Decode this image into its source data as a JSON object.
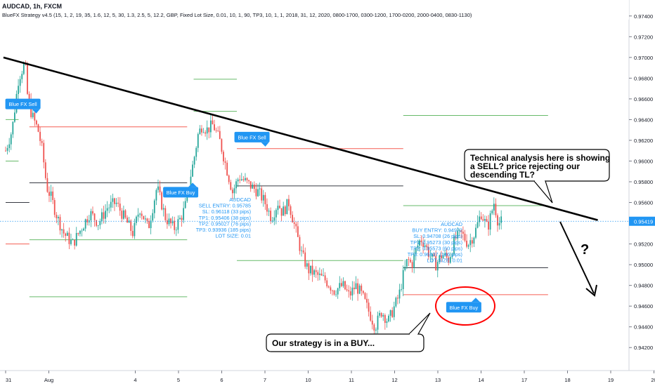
{
  "header": {
    "title": "AUDCAD, 1h, FXCM",
    "indicator": "BlueFX Strategy v4.5 (15, 1, 2, 19, 35, 1.6, 12, 5, 30, 1.3, 2.5, 5, 12.2, GBP, Fixed Lot Size, 0.01, 10, 1, 90, TP3, 10, 1, 1, 2018, 31, 12, 2020, 0800-1700, 0300-1200, 1700-0200, 2000-0400, 0830-1130)"
  },
  "chart_data": {
    "type": "candlestick",
    "symbol": "AUDCAD",
    "timeframe": "1h",
    "ylim": [
      0.941,
      0.975
    ],
    "current_price": "0.95419",
    "y_ticks": [
      "0.97400",
      "0.97200",
      "0.97000",
      "0.96800",
      "0.96600",
      "0.96400",
      "0.96200",
      "0.96000",
      "0.95800",
      "0.95600",
      "0.95400",
      "0.95200",
      "0.95000",
      "0.94800",
      "0.94600",
      "0.94400",
      "0.94200"
    ],
    "x_ticks": [
      {
        "label": "31",
        "x": 0.0
      },
      {
        "label": "Aug",
        "x": 1.0
      },
      {
        "label": "4",
        "x": 3.0
      },
      {
        "label": "5",
        "x": 4.0
      },
      {
        "label": "6",
        "x": 5.0
      },
      {
        "label": "7",
        "x": 6.0
      },
      {
        "label": "10",
        "x": 7.0
      },
      {
        "label": "11",
        "x": 8.0
      },
      {
        "label": "12",
        "x": 9.0
      },
      {
        "label": "13",
        "x": 10.0
      },
      {
        "label": "14",
        "x": 11.0
      },
      {
        "label": "17",
        "x": 12.0
      },
      {
        "label": "18",
        "x": 13.0
      },
      {
        "label": "19",
        "x": 14.0
      },
      {
        "label": "20",
        "x": 15.0
      }
    ],
    "price_path": [
      [
        0.0,
        0.961
      ],
      [
        0.15,
        0.963
      ],
      [
        0.3,
        0.968
      ],
      [
        0.45,
        0.9695
      ],
      [
        0.5,
        0.9665
      ],
      [
        0.6,
        0.9645
      ],
      [
        0.75,
        0.963
      ],
      [
        0.85,
        0.961
      ],
      [
        0.95,
        0.9575
      ],
      [
        1.05,
        0.9565
      ],
      [
        1.2,
        0.9545
      ],
      [
        1.35,
        0.953
      ],
      [
        1.55,
        0.952
      ],
      [
        1.75,
        0.9535
      ],
      [
        1.95,
        0.955
      ],
      [
        2.15,
        0.954
      ],
      [
        2.35,
        0.9555
      ],
      [
        2.55,
        0.956
      ],
      [
        2.75,
        0.9545
      ],
      [
        2.95,
        0.953
      ],
      [
        3.1,
        0.9555
      ],
      [
        3.3,
        0.9535
      ],
      [
        3.5,
        0.9575
      ],
      [
        3.7,
        0.9545
      ],
      [
        3.9,
        0.9535
      ],
      [
        4.05,
        0.9545
      ],
      [
        4.15,
        0.9555
      ],
      [
        4.25,
        0.958
      ],
      [
        4.35,
        0.96
      ],
      [
        4.45,
        0.9625
      ],
      [
        4.55,
        0.9635
      ],
      [
        4.65,
        0.963
      ],
      [
        4.8,
        0.9635
      ],
      [
        4.95,
        0.962
      ],
      [
        5.1,
        0.9595
      ],
      [
        5.25,
        0.957
      ],
      [
        5.4,
        0.9585
      ],
      [
        5.55,
        0.958
      ],
      [
        5.7,
        0.9575
      ],
      [
        5.85,
        0.957
      ],
      [
        6.0,
        0.956
      ],
      [
        6.15,
        0.9545
      ],
      [
        6.3,
        0.956
      ],
      [
        6.4,
        0.955
      ],
      [
        6.55,
        0.956
      ],
      [
        6.7,
        0.9535
      ],
      [
        6.85,
        0.951
      ],
      [
        7.0,
        0.9495
      ],
      [
        7.2,
        0.949
      ],
      [
        7.4,
        0.9485
      ],
      [
        7.6,
        0.9475
      ],
      [
        7.8,
        0.948
      ],
      [
        7.95,
        0.947
      ],
      [
        8.1,
        0.948
      ],
      [
        8.25,
        0.947
      ],
      [
        8.4,
        0.9455
      ],
      [
        8.55,
        0.944
      ],
      [
        8.7,
        0.9455
      ],
      [
        8.85,
        0.9445
      ],
      [
        9.0,
        0.946
      ],
      [
        9.1,
        0.947
      ],
      [
        9.2,
        0.949
      ],
      [
        9.3,
        0.9505
      ],
      [
        9.4,
        0.95
      ],
      [
        9.5,
        0.9515
      ],
      [
        9.6,
        0.9525
      ],
      [
        9.7,
        0.952
      ],
      [
        9.8,
        0.951
      ],
      [
        9.95,
        0.95
      ],
      [
        10.1,
        0.951
      ],
      [
        10.25,
        0.9505
      ],
      [
        10.4,
        0.9525
      ],
      [
        10.55,
        0.953
      ],
      [
        10.7,
        0.952
      ],
      [
        10.85,
        0.953
      ],
      [
        11.0,
        0.955
      ],
      [
        11.15,
        0.9535
      ],
      [
        11.3,
        0.956
      ],
      [
        11.4,
        0.954
      ],
      [
        11.5,
        0.9542
      ]
    ],
    "trendline": {
      "from": [
        -0.05,
        0.97
      ],
      "to": [
        13.7,
        0.9543
      ]
    },
    "levels": [
      {
        "value": 0.964,
        "x": [
          0.0,
          0.3
        ],
        "color": "#4caf50"
      },
      {
        "value": 0.96,
        "x": [
          0.0,
          0.3
        ],
        "color": "#4caf50"
      },
      {
        "value": 0.956,
        "x": [
          0.0,
          0.55
        ],
        "color": "#131722"
      },
      {
        "value": 0.952,
        "x": [
          0.0,
          0.55
        ],
        "color": "#f44336"
      },
      {
        "value": 0.9633,
        "x": [
          0.55,
          4.2
        ],
        "color": "#f44336"
      },
      {
        "value": 0.9579,
        "x": [
          0.55,
          4.2
        ],
        "color": "#131722"
      },
      {
        "value": 0.9524,
        "x": [
          0.55,
          4.2
        ],
        "color": "#4caf50"
      },
      {
        "value": 0.9469,
        "x": [
          0.55,
          4.2
        ],
        "color": "#4caf50"
      },
      {
        "value": 0.9679,
        "x": [
          4.35,
          5.35
        ],
        "color": "#4caf50"
      },
      {
        "value": 0.9648,
        "x": [
          4.35,
          5.35
        ],
        "color": "#4caf50"
      },
      {
        "value": 0.9612,
        "x": [
          5.35,
          9.2
        ],
        "color": "#f44336"
      },
      {
        "value": 0.9576,
        "x": [
          5.35,
          9.2
        ],
        "color": "#131722"
      },
      {
        "value": 0.9504,
        "x": [
          5.35,
          9.2
        ],
        "color": "#4caf50"
      },
      {
        "value": 0.9644,
        "x": [
          9.2,
          12.55
        ],
        "color": "#4caf50"
      },
      {
        "value": 0.9557,
        "x": [
          9.2,
          12.55
        ],
        "color": "#4caf50"
      },
      {
        "value": 0.9497,
        "x": [
          9.2,
          12.55
        ],
        "color": "#131722"
      },
      {
        "value": 0.9471,
        "x": [
          9.2,
          12.55
        ],
        "color": "#f44336"
      }
    ],
    "signals": [
      {
        "label": "Blue FX Sell",
        "x": 0.4,
        "y": 0.965,
        "dir": "down"
      },
      {
        "label": "Blue FX Buy",
        "x": 4.05,
        "y": 0.9575,
        "dir": "up"
      },
      {
        "label": "Blue FX Sell",
        "x": 5.7,
        "y": 0.9618,
        "dir": "down"
      },
      {
        "label": "Blue FX Buy",
        "x": 10.6,
        "y": 0.9464,
        "dir": "up"
      }
    ],
    "sell_info": [
      "AUDCAD",
      "SELL ENTRY: 0.95785",
      "SL: 0.96118 (33 pips)",
      "TP1: 0.95406 (38 pips)",
      "TP2: 0.95027 (76 pips)",
      "TP3: 0.93936 (185 pips)",
      "LOT SIZE: 0.01"
    ],
    "buy_info": [
      "AUDCAD",
      "BUY ENTRY: 0.94972",
      "SL: 0.94708 (26 pips)",
      "TP1: 0.95273 (30 pips)",
      "TP2: 0.95573 (60 pips)",
      "TP3: 0.96437 (146 pips)",
      "LOT SIZE: 0.01"
    ],
    "callouts": [
      {
        "text": "Our strategy is in a BUY..."
      },
      {
        "text": "Technical analysis here is showing a SELL? price rejecting our descending TL?"
      }
    ],
    "question_mark": "?",
    "colors": {
      "up": "#26a69a",
      "down": "#ef5350",
      "signal": "#2196f3",
      "info": "#2196f3",
      "trend": "#000000",
      "price_label": "#2196f3",
      "circle": "#ff0000"
    }
  }
}
